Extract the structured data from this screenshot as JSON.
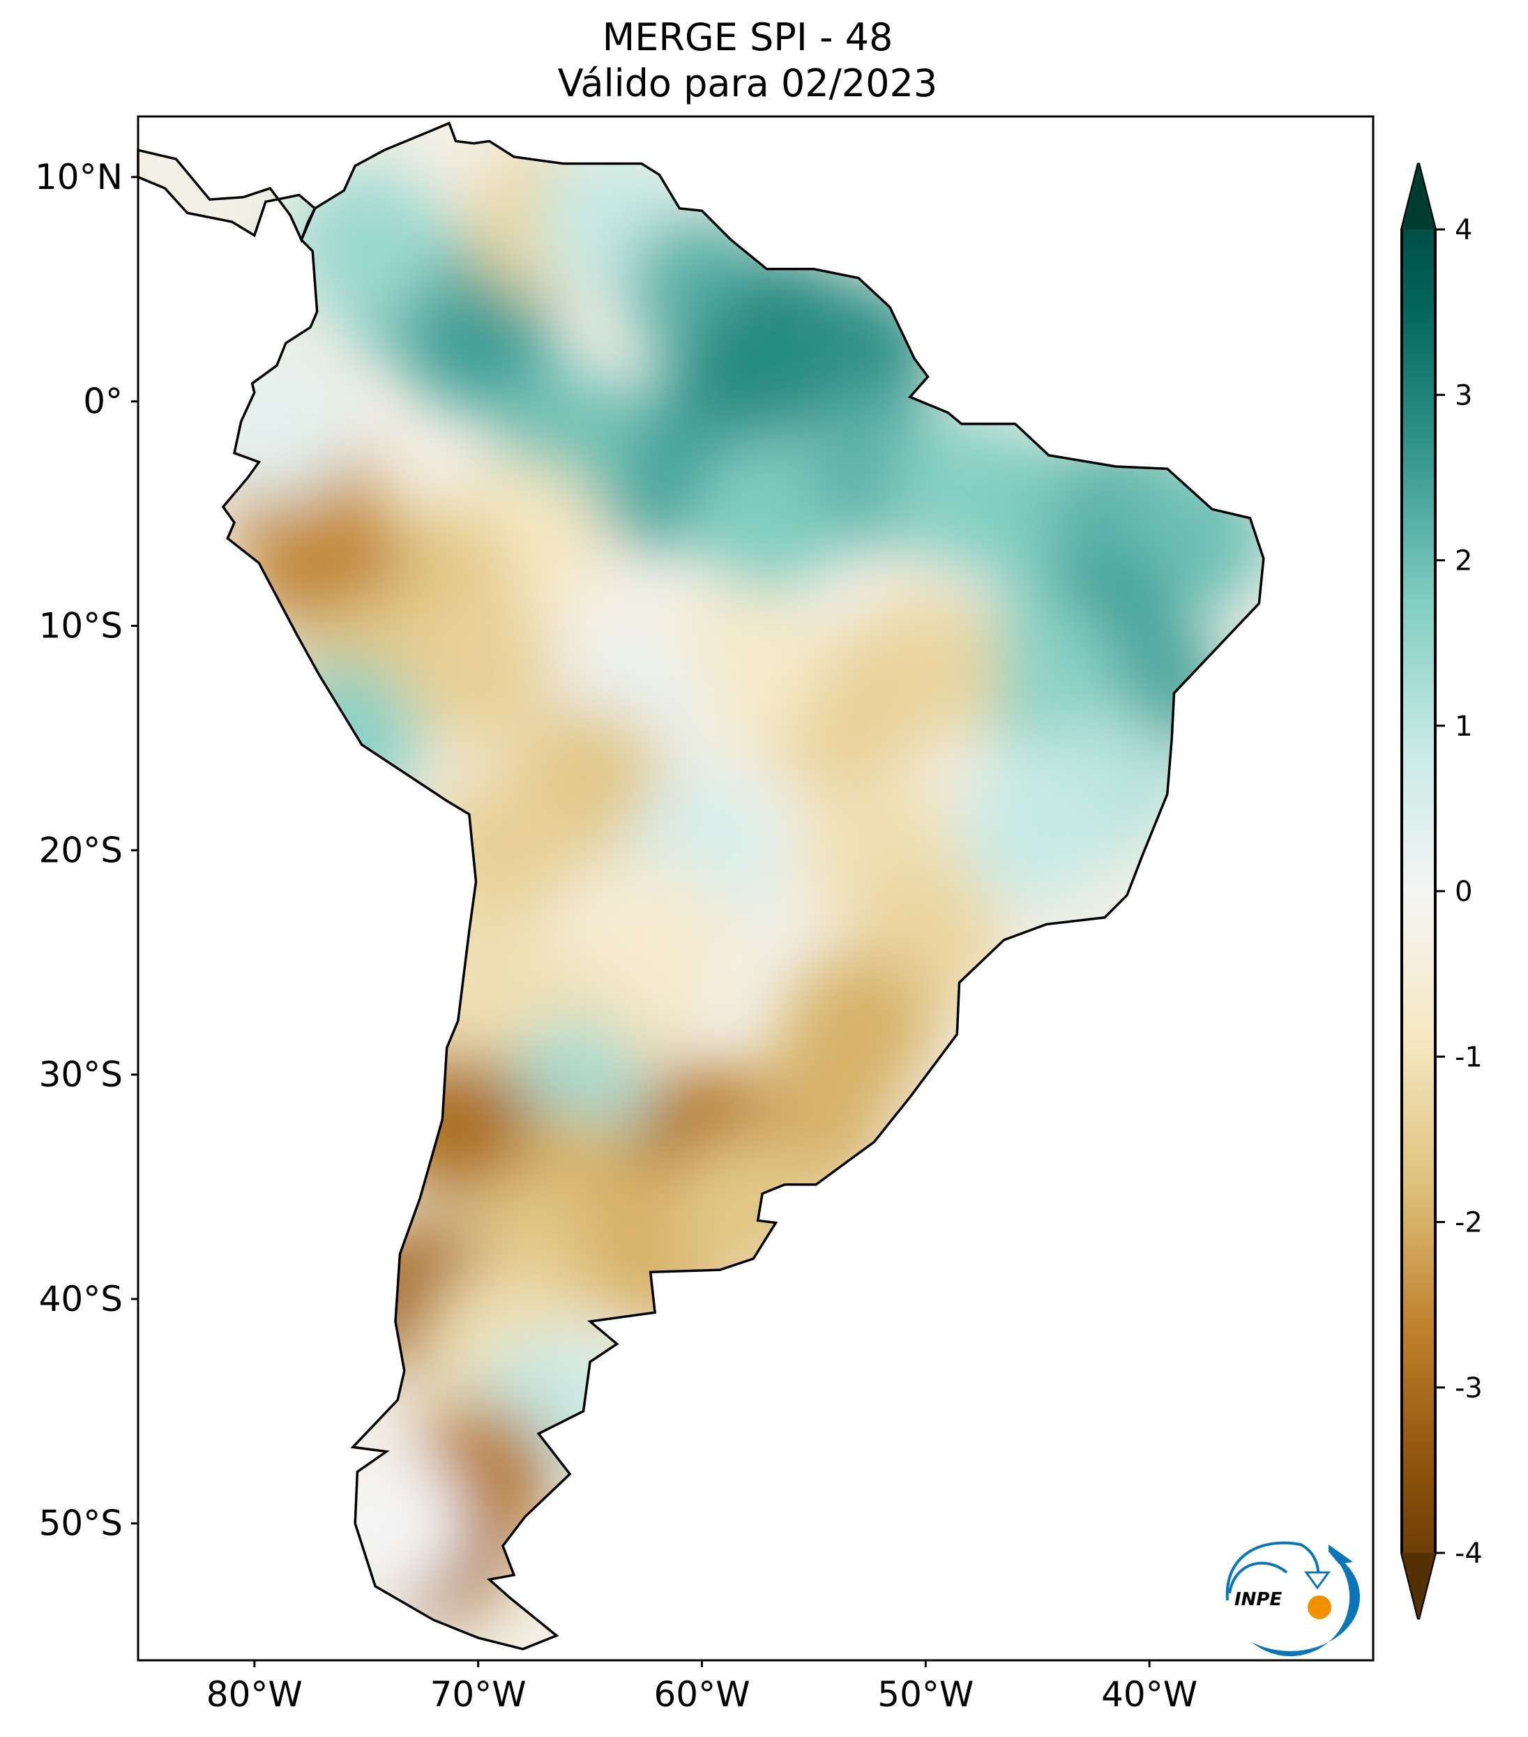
{
  "chart_data": {
    "type": "heatmap",
    "title": "MERGE   SPI - 48",
    "subtitle": "Válido para 02/2023",
    "xlabel": "",
    "ylabel": "",
    "xlim": [
      -85.2,
      -30.0
    ],
    "ylim": [
      -56.1,
      12.7
    ],
    "x_ticks": [
      -80,
      -70,
      -60,
      -50,
      -40
    ],
    "x_tick_labels": [
      "80°W",
      "70°W",
      "60°W",
      "50°W",
      "40°W"
    ],
    "y_ticks": [
      10,
      0,
      -10,
      -20,
      -30,
      -40,
      -50
    ],
    "y_tick_labels": [
      "10°N",
      "0°",
      "10°S",
      "20°S",
      "30°S",
      "40°S",
      "50°S"
    ],
    "colorbar": {
      "range": [
        -4,
        4
      ],
      "extend": "both",
      "ticks": [
        4,
        3,
        2,
        1,
        0,
        -1,
        -2,
        -3,
        -4
      ],
      "tick_labels": [
        "4",
        "3",
        "2",
        "1",
        "0",
        "-1",
        "-2",
        "-3",
        "-4"
      ],
      "colormap": [
        "#543005",
        "#8c510a",
        "#bf812d",
        "#dfc27d",
        "#f6e8c3",
        "#f5f5f5",
        "#c7eae5",
        "#80cdc1",
        "#35978f",
        "#01665e",
        "#003c30"
      ]
    },
    "spi_field_samples": [
      [
        -73,
        5,
        1.8
      ],
      [
        -70,
        3,
        2.3
      ],
      [
        -75,
        7,
        1.3
      ],
      [
        -67,
        8,
        -1.2
      ],
      [
        -64,
        8,
        0.8
      ],
      [
        -60,
        5,
        2.0
      ],
      [
        -56,
        3,
        2.7
      ],
      [
        -53,
        2,
        2.5
      ],
      [
        -58,
        1,
        2.6
      ],
      [
        -62,
        -3,
        2.3
      ],
      [
        -66,
        -2,
        1.8
      ],
      [
        -57,
        -5,
        1.6
      ],
      [
        -52,
        -3,
        2.0
      ],
      [
        -48,
        -4,
        1.5
      ],
      [
        -45,
        -5,
        1.6
      ],
      [
        -41,
        -5,
        2.0
      ],
      [
        -38,
        -6,
        1.8
      ],
      [
        -42,
        -10,
        2.3
      ],
      [
        -40,
        -13,
        2.2
      ],
      [
        -45,
        -12,
        1.5
      ],
      [
        -42,
        -17,
        1.0
      ],
      [
        -45,
        -19,
        0.8
      ],
      [
        -50,
        -12,
        -1.2
      ],
      [
        -54,
        -14,
        -1.3
      ],
      [
        -58,
        -12,
        -0.7
      ],
      [
        -63,
        -14,
        0.2
      ],
      [
        -65,
        -17,
        -1.5
      ],
      [
        -68,
        -6,
        -0.8
      ],
      [
        -72,
        -8,
        -1.5
      ],
      [
        -77,
        -7,
        -2.5
      ],
      [
        -78,
        -4,
        -2.2
      ],
      [
        -75,
        -12,
        -1.5
      ],
      [
        -76,
        -15,
        1.5
      ],
      [
        -79,
        -1,
        0.3
      ],
      [
        -70,
        -12,
        -1.3
      ],
      [
        -60,
        -20,
        0.5
      ],
      [
        -52,
        -20,
        -1.0
      ],
      [
        -50,
        -24,
        -1.2
      ],
      [
        -53,
        -28,
        -1.8
      ],
      [
        -55,
        -32,
        -1.8
      ],
      [
        -60,
        -33,
        -2.6
      ],
      [
        -64,
        -27,
        -1.0
      ],
      [
        -66,
        -31,
        1.2
      ],
      [
        -66,
        -35,
        -1.8
      ],
      [
        -68,
        -38,
        -1.5
      ],
      [
        -71,
        -32,
        -2.7
      ],
      [
        -72.5,
        -40,
        -2.8
      ],
      [
        -69,
        -42,
        -1.0
      ],
      [
        -67,
        -45,
        0.8
      ],
      [
        -70,
        -48,
        -2.5
      ],
      [
        -72,
        -51,
        -2.8
      ],
      [
        -74,
        -50,
        0.0
      ],
      [
        -62,
        -38,
        -1.8
      ],
      [
        -58,
        -36,
        -1.5
      ],
      [
        -69,
        -20,
        -1.3
      ],
      [
        -70,
        -26,
        -1.0
      ],
      [
        -62,
        -24,
        -0.6
      ]
    ]
  },
  "logo": {
    "text": "INPE"
  }
}
